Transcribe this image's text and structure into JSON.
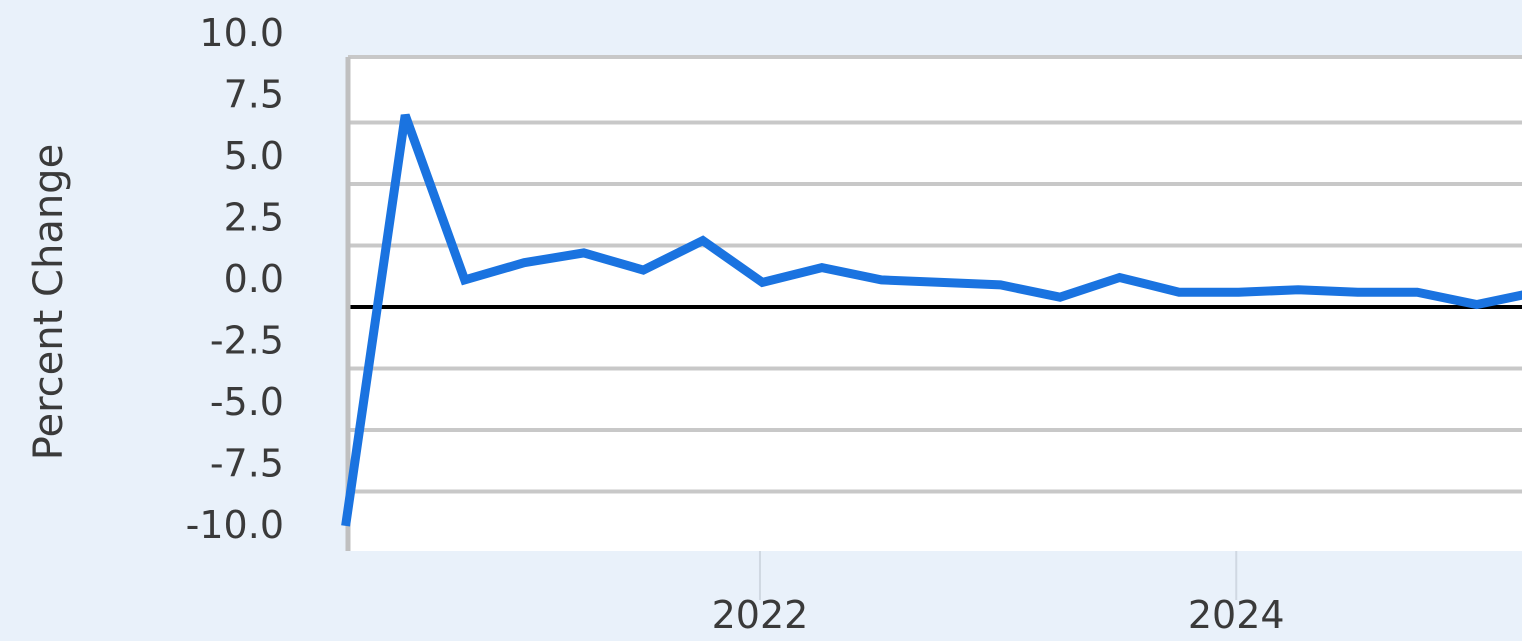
{
  "chart_data": {
    "type": "line",
    "title": "",
    "xlabel": "",
    "ylabel": "Percent Change",
    "ylim": [
      -10.0,
      10.0
    ],
    "yticks": [
      "10.0",
      "7.5",
      "5.0",
      "2.5",
      "0.0",
      "-2.5",
      "-5.0",
      "-7.5",
      "-10.0"
    ],
    "xticks": [
      {
        "label": "2022",
        "x": 2022.0
      },
      {
        "label": "2024",
        "x": 2024.0
      }
    ],
    "xlim": [
      2020.27,
      2025.2
    ],
    "zero_line": 0.0,
    "grid": true,
    "series_color": "#1a73e0",
    "series": [
      {
        "name": "",
        "points": [
          {
            "x": "2020-Q2",
            "y": -8.9
          },
          {
            "x": "2020-Q3",
            "y": 7.8
          },
          {
            "x": "2020-Q4",
            "y": 1.1
          },
          {
            "x": "2021-Q1",
            "y": 1.8
          },
          {
            "x": "2021-Q2",
            "y": 2.2
          },
          {
            "x": "2021-Q3",
            "y": 1.5
          },
          {
            "x": "2021-Q4",
            "y": 2.7
          },
          {
            "x": "2022-Q1",
            "y": 1.0
          },
          {
            "x": "2022-Q2",
            "y": 1.6
          },
          {
            "x": "2022-Q3",
            "y": 1.1
          },
          {
            "x": "2022-Q4",
            "y": 1.0
          },
          {
            "x": "2023-Q1",
            "y": 0.9
          },
          {
            "x": "2023-Q2",
            "y": 0.4
          },
          {
            "x": "2023-Q3",
            "y": 1.2
          },
          {
            "x": "2023-Q4",
            "y": 0.6
          },
          {
            "x": "2024-Q1",
            "y": 0.6
          },
          {
            "x": "2024-Q2",
            "y": 0.7
          },
          {
            "x": "2024-Q3",
            "y": 0.6
          },
          {
            "x": "2024-Q4",
            "y": 0.6
          },
          {
            "x": "2025-Q1",
            "y": 0.1
          },
          {
            "x": "2025-Q2",
            "y": 0.6
          }
        ]
      }
    ]
  }
}
